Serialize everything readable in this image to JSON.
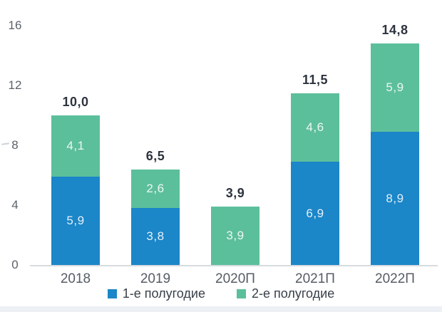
{
  "figure": {
    "background": "#ffffff",
    "footer_strip_color": "#edf1f5"
  },
  "chart_data": {
    "type": "bar",
    "stacked": true,
    "title": "",
    "xlabel": "",
    "ylabel": "",
    "categories": [
      "2018",
      "2019",
      "2020П",
      "2021П",
      "2022П"
    ],
    "series": [
      {
        "name": "1-е полугодие",
        "color": "#1b86c8",
        "values": [
          5.9,
          3.8,
          0,
          6.9,
          8.9
        ],
        "value_labels": [
          "5,9",
          "3,8",
          "",
          "6,9",
          "8,9"
        ]
      },
      {
        "name": "2-е полугодие",
        "color": "#5cbf9b",
        "values": [
          4.1,
          2.6,
          3.9,
          4.6,
          5.9
        ],
        "value_labels": [
          "4,1",
          "2,6",
          "3,9",
          "4,6",
          "5,9"
        ]
      }
    ],
    "totals": {
      "values": [
        10.0,
        6.5,
        3.9,
        11.5,
        14.8
      ],
      "labels": [
        "10,0",
        "6,5",
        "3,9",
        "11,5",
        "14,8"
      ]
    },
    "y_axis": {
      "ticks": [
        0,
        4,
        8,
        12,
        16
      ],
      "min": 0,
      "max": 16,
      "grid": false
    },
    "legend": {
      "position": "bottom",
      "items": [
        {
          "label": "1-е полугодие",
          "color": "#1b86c8"
        },
        {
          "label": "2-е полугодие",
          "color": "#5cbf9b"
        }
      ]
    }
  }
}
